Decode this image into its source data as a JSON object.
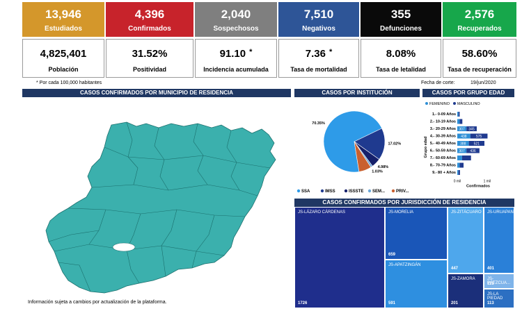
{
  "kpis": [
    {
      "value": "13,946",
      "label": "Estudiados",
      "color": "#d4972b"
    },
    {
      "value": "4,396",
      "label": "Confirmados",
      "color": "#c7232b"
    },
    {
      "value": "2,040",
      "label": "Sospechosos",
      "color": "#7f7f7f"
    },
    {
      "value": "7,510",
      "label": "Negativos",
      "color": "#2e5597"
    },
    {
      "value": "355",
      "label": "Defunciones",
      "color": "#0a0a0a"
    },
    {
      "value": "2,576",
      "label": "Recuperados",
      "color": "#17a74b"
    }
  ],
  "stats": [
    {
      "value": "4,825,401",
      "label": "Población"
    },
    {
      "value": "31.52%",
      "label": "Positividad"
    },
    {
      "value": "91.10",
      "star": "*",
      "label": "Incidencia acumulada"
    },
    {
      "value": "7.36",
      "star": "*",
      "label": "Tasa de mortalidad"
    },
    {
      "value": "8.08%",
      "label": "Tasa de letalidad"
    },
    {
      "value": "58.60%",
      "label": "Tasa de recuperación"
    }
  ],
  "notes": {
    "per_100k": "* Por cada 100,000 habitantes",
    "cutoff_label": "Fecha de corte:",
    "cutoff_date": "19/jun/2020",
    "disclaimer": "Información sujeta a cambios por actualización de la plataforma."
  },
  "sections": {
    "map_title": "CASOS CONFIRMADOS POR MUNICIPIO DE RESIDENCIA",
    "institution_title": "CASOS POR INSTITUCIÓN",
    "age_title": "CASOS POR GRUPO EDAD",
    "jurisdiction_title": "CASOS CONFIRMADOS POR JURISDICCIÓN DE RESIDENCIA"
  },
  "colors": {
    "header_bar": "#1f3763",
    "map_fill": "#3bb0ad",
    "femenino": "#2e8fd6",
    "masculino": "#1f3a8f"
  },
  "chart_data": [
    {
      "type": "pie",
      "title": "CASOS POR INSTITUCIÓN",
      "categories": [
        "SSA",
        "IMSS",
        "ISSSTE",
        "SEM...",
        "PRIV..."
      ],
      "values": [
        70.35,
        17.02,
        4.98,
        1.03,
        6.62
      ],
      "labels": [
        "70.35%",
        "17.02%",
        "4.98%",
        "1.03%"
      ],
      "colors": [
        "#2e9be8",
        "#1f3a8f",
        "#15206b",
        "#6aa7d8",
        "#c9602f"
      ],
      "legend_labels": [
        "SSA",
        "IMSS",
        "ISSSTE",
        "SEM...",
        "PRIV..."
      ],
      "legend": "bottom"
    },
    {
      "type": "bar",
      "title": "CASOS POR GRUPO EDAD",
      "legend": [
        "FEMENINO",
        "MASCULINO"
      ],
      "ylabel": "Grupo edad",
      "xlabel": "Confirmados",
      "xticks": [
        "0 mil",
        "1 mil"
      ],
      "categories": [
        "1.- 0-09 Años",
        "2.- 10-19 Años",
        "3.- 20-29 Años",
        "4.- 30-39 Años",
        "5.- 40-49 Años",
        "6.- 50-59 Años",
        "7.- 60-69 Años",
        "8.- 70-79 Años",
        "9.- 80 + Años"
      ],
      "series": [
        {
          "name": "FEMENINO",
          "values": [
            40,
            80,
            307,
            438,
            388,
            307,
            160,
            80,
            40
          ]
        },
        {
          "name": "MASCULINO",
          "values": [
            40,
            90,
            345,
            575,
            521,
            436,
            300,
            130,
            50
          ]
        }
      ],
      "value_labels": {
        "FEMENINO": [
          "",
          "",
          "307",
          "438",
          "388",
          "307",
          "",
          "",
          ""
        ],
        "MASCULINO": [
          "",
          "",
          "345",
          "575",
          "521",
          "436",
          "",
          "",
          ""
        ]
      },
      "xlim": [
        0,
        1000
      ]
    },
    {
      "type": "treemap",
      "title": "CASOS CONFIRMADOS POR JURISDICCIÓN DE RESIDENCIA",
      "categories": [
        "JS-LÁZARO CÁRDENAS",
        "JS-MORELIA",
        "JS-APATZINGÁN",
        "JS-ZITÁCUARO",
        "JS-URUAPAN",
        "JS-ZAMORA",
        "JS-PÁTZCUA...",
        "JS-LA PIEDAD"
      ],
      "values": [
        1726,
        659,
        591,
        447,
        401,
        201,
        115,
        113
      ],
      "colors": [
        "#1f2e8c",
        "#1a56b8",
        "#2e8fe0",
        "#4ea7ec",
        "#2a80d8",
        "#1b2f7a",
        "#7fb4ea",
        "#2c6fc2"
      ]
    }
  ]
}
